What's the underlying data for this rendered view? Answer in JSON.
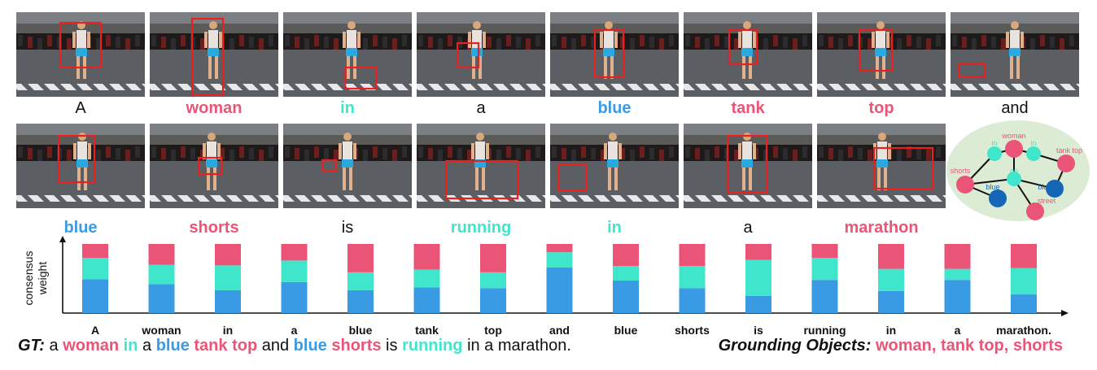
{
  "colors": {
    "pink": "#ea5577",
    "cyan": "#40e6cc",
    "blue": "#3a9be5",
    "dark_blue": "#1566b6",
    "box_red": "#e8201f",
    "graph_bg": "#dcebd3"
  },
  "row1_words": [
    {
      "text": "A",
      "color": "",
      "bold": false
    },
    {
      "text": "woman",
      "color": "#ea5577",
      "bold": true
    },
    {
      "text": "in",
      "color": "#40e6cc",
      "bold": true
    },
    {
      "text": "a",
      "color": "",
      "bold": false
    },
    {
      "text": "blue",
      "color": "#3a9be5",
      "bold": true
    },
    {
      "text": "tank",
      "color": "#ea5577",
      "bold": true
    },
    {
      "text": "top",
      "color": "#ea5577",
      "bold": true
    },
    {
      "text": "and",
      "color": "",
      "bold": false
    }
  ],
  "row2_words": [
    {
      "text": "blue",
      "color": "#3a9be5",
      "bold": true
    },
    {
      "text": "shorts",
      "color": "#ea5577",
      "bold": true
    },
    {
      "text": "is",
      "color": "",
      "bold": false
    },
    {
      "text": "running",
      "color": "#40e6cc",
      "bold": true
    },
    {
      "text": "in",
      "color": "#40e6cc",
      "bold": true
    },
    {
      "text": "a",
      "color": "",
      "bold": false
    },
    {
      "text": "marathon",
      "color": "#ea5577",
      "bold": true
    }
  ],
  "graph_nodes": [
    {
      "label": "woman",
      "color": "#ea5577"
    },
    {
      "label": "in",
      "color": "#40e6cc"
    },
    {
      "label": "in",
      "color": "#40e6cc"
    },
    {
      "label": "tank top",
      "color": "#ea5577"
    },
    {
      "label": "shorts",
      "color": "#ea5577"
    },
    {
      "label": "on",
      "color": "#40e6cc"
    },
    {
      "label": "blue",
      "color": "#1566b6"
    },
    {
      "label": "blue",
      "color": "#1566b6"
    },
    {
      "label": "street",
      "color": "#ea5577"
    }
  ],
  "chart_data": {
    "type": "bar",
    "stacked": true,
    "ylabel": "consensus weight",
    "xlabel": "",
    "categories": [
      "A",
      "woman",
      "in",
      "a",
      "blue",
      "tank",
      "top",
      "and",
      "blue",
      "shorts",
      "is",
      "running",
      "in",
      "a",
      "marathon."
    ],
    "series": [
      {
        "color": "#3a9be5",
        "values": [
          0.49,
          0.42,
          0.33,
          0.45,
          0.33,
          0.37,
          0.36,
          0.66,
          0.47,
          0.36,
          0.25,
          0.48,
          0.32,
          0.48,
          0.27
        ]
      },
      {
        "color": "#40e6cc",
        "values": [
          0.31,
          0.28,
          0.36,
          0.31,
          0.26,
          0.26,
          0.23,
          0.22,
          0.21,
          0.32,
          0.52,
          0.32,
          0.32,
          0.16,
          0.38
        ]
      },
      {
        "color": "#ea5577",
        "values": [
          0.2,
          0.3,
          0.31,
          0.24,
          0.41,
          0.37,
          0.41,
          0.12,
          0.32,
          0.32,
          0.23,
          0.2,
          0.36,
          0.36,
          0.35
        ]
      }
    ],
    "ylim": [
      0,
      1
    ],
    "grid": false,
    "legend": "none"
  },
  "gt": {
    "label": "GT:",
    "tokens": [
      {
        "text": "a",
        "color": "",
        "bold": false
      },
      {
        "text": "woman",
        "color": "#ea5577",
        "bold": true
      },
      {
        "text": "in",
        "color": "#40e6cc",
        "bold": true
      },
      {
        "text": "a",
        "color": "",
        "bold": false
      },
      {
        "text": "blue",
        "color": "#3a9be5",
        "bold": true
      },
      {
        "text": "tank top",
        "color": "#ea5577",
        "bold": true
      },
      {
        "text": "and",
        "color": "",
        "bold": false
      },
      {
        "text": "blue",
        "color": "#3a9be5",
        "bold": true
      },
      {
        "text": "shorts",
        "color": "#ea5577",
        "bold": true
      },
      {
        "text": "is",
        "color": "",
        "bold": false
      },
      {
        "text": "running",
        "color": "#40e6cc",
        "bold": true
      },
      {
        "text": "in a marathon.",
        "color": "",
        "bold": false
      }
    ]
  },
  "grounding": {
    "label": "Grounding Objects:",
    "objects": "woman, tank top, shorts"
  }
}
